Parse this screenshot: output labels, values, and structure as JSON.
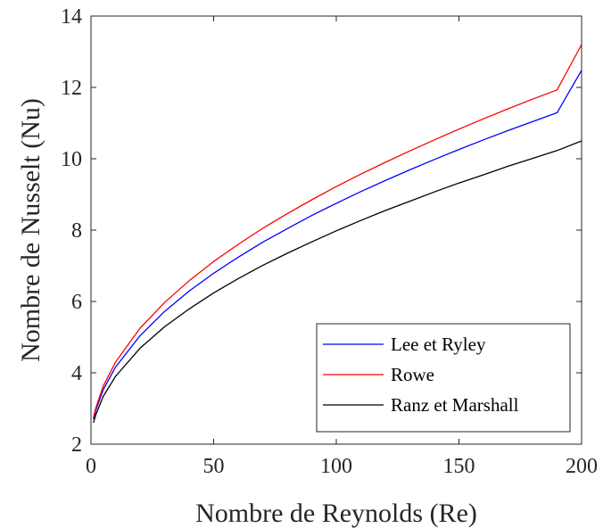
{
  "chart_data": {
    "type": "line",
    "title": "",
    "xlabel": "Nombre de Reynolds (Re)",
    "ylabel": "Nombre de Nusselt (Nu)",
    "xlim": [
      0,
      200
    ],
    "ylim": [
      2,
      14
    ],
    "xticks": [
      0,
      50,
      100,
      150,
      200
    ],
    "yticks": [
      2,
      4,
      6,
      8,
      10,
      12,
      14
    ],
    "grid": false,
    "legend_position": "bottom-right",
    "x": [
      1,
      2,
      5,
      10,
      20,
      30,
      40,
      50,
      60,
      70,
      80,
      90,
      100,
      110,
      120,
      130,
      140,
      150,
      160,
      170,
      180,
      190,
      200
    ],
    "series": [
      {
        "name": "Lee et Ryley",
        "color": "#0000ff",
        "values": [
          2.7,
          2.96,
          3.53,
          4.16,
          5.04,
          5.72,
          6.29,
          6.79,
          7.24,
          7.66,
          8.04,
          8.41,
          8.75,
          9.08,
          9.39,
          9.69,
          9.98,
          10.26,
          10.53,
          10.79,
          11.04,
          11.29,
          12.48
        ]
      },
      {
        "name": "Rowe",
        "color": "#ff0000",
        "values": [
          2.75,
          3.02,
          3.63,
          4.3,
          5.25,
          5.97,
          6.58,
          7.12,
          7.6,
          8.05,
          8.46,
          8.85,
          9.22,
          9.57,
          9.9,
          10.22,
          10.53,
          10.83,
          11.12,
          11.4,
          11.67,
          11.93,
          13.2
        ]
      },
      {
        "name": "Ranz et Marshall",
        "color": "#000000",
        "values": [
          2.6,
          2.83,
          3.34,
          3.9,
          4.69,
          5.29,
          5.79,
          6.24,
          6.64,
          7.01,
          7.35,
          7.67,
          7.98,
          8.27,
          8.55,
          8.81,
          9.07,
          9.32,
          9.55,
          9.79,
          10.01,
          10.23,
          10.5
        ]
      }
    ]
  }
}
